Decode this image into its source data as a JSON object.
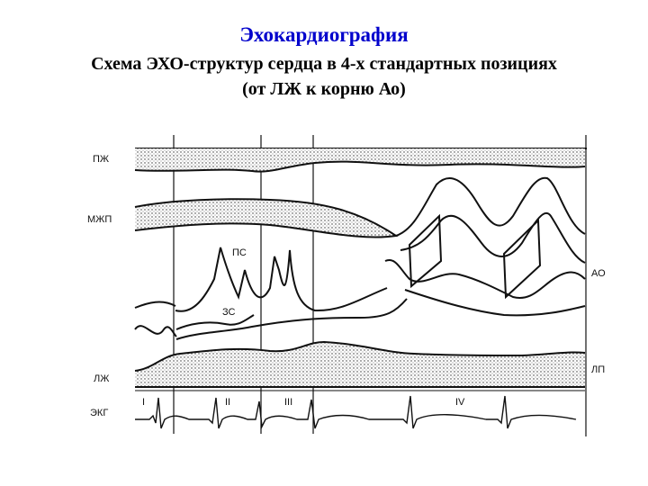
{
  "header": {
    "title": "Эхокардиография",
    "subtitle": [
      "Схема ЭХО-структур сердца в 4-х стандартных позициях",
      "(от ЛЖ к корню Ао)"
    ]
  },
  "diagram": {
    "labels": [
      "ПЖ",
      "МЖП",
      "ПС",
      "ЗС",
      "АО",
      "ЛЖ",
      "ЛП",
      "ЭКГ",
      "I",
      "II",
      "III",
      "IV"
    ]
  }
}
